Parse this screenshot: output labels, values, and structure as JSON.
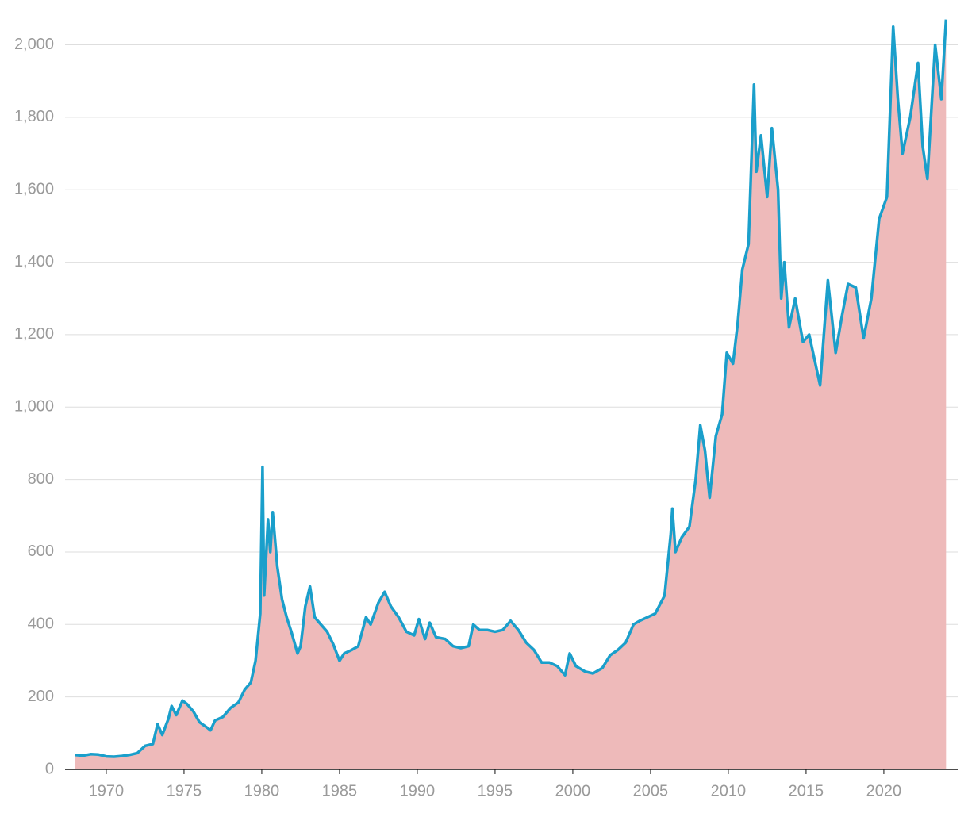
{
  "chart_data": {
    "type": "area",
    "x": [
      1968.0,
      1968.5,
      1969.0,
      1969.5,
      1970.0,
      1970.5,
      1971.0,
      1971.5,
      1972.0,
      1972.5,
      1973.0,
      1973.3,
      1973.6,
      1974.0,
      1974.2,
      1974.5,
      1974.9,
      1975.2,
      1975.6,
      1976.0,
      1976.5,
      1976.7,
      1977.0,
      1977.5,
      1978.0,
      1978.5,
      1978.9,
      1979.3,
      1979.6,
      1979.9,
      1980.05,
      1980.15,
      1980.4,
      1980.55,
      1980.7,
      1981.0,
      1981.3,
      1981.6,
      1981.9,
      1982.3,
      1982.5,
      1982.8,
      1983.1,
      1983.4,
      1983.8,
      1984.2,
      1984.6,
      1985.0,
      1985.3,
      1985.8,
      1986.2,
      1986.7,
      1987.0,
      1987.5,
      1987.9,
      1988.3,
      1988.8,
      1989.3,
      1989.8,
      1990.1,
      1990.5,
      1990.8,
      1991.2,
      1991.8,
      1992.3,
      1992.8,
      1993.3,
      1993.6,
      1994.0,
      1994.5,
      1995.0,
      1995.5,
      1996.0,
      1996.5,
      1997.0,
      1997.5,
      1998.0,
      1998.5,
      1999.0,
      1999.5,
      1999.8,
      2000.2,
      2000.8,
      2001.3,
      2001.9,
      2002.4,
      2002.9,
      2003.4,
      2003.9,
      2004.3,
      2004.8,
      2005.3,
      2005.9,
      2006.3,
      2006.4,
      2006.6,
      2007.0,
      2007.5,
      2007.9,
      2008.2,
      2008.5,
      2008.8,
      2009.2,
      2009.6,
      2009.9,
      2010.3,
      2010.6,
      2010.9,
      2011.3,
      2011.65,
      2011.8,
      2012.1,
      2012.5,
      2012.8,
      2013.2,
      2013.4,
      2013.6,
      2013.9,
      2014.3,
      2014.8,
      2015.2,
      2015.9,
      2016.4,
      2016.9,
      2017.3,
      2017.7,
      2018.2,
      2018.7,
      2019.2,
      2019.7,
      2020.2,
      2020.6,
      2020.9,
      2021.2,
      2021.7,
      2022.2,
      2022.5,
      2022.8,
      2023.3,
      2023.7,
      2024.0
    ],
    "values": [
      40,
      38,
      42,
      41,
      36,
      35,
      37,
      40,
      45,
      65,
      70,
      125,
      95,
      140,
      175,
      150,
      190,
      180,
      160,
      130,
      115,
      108,
      135,
      145,
      170,
      185,
      220,
      240,
      300,
      430,
      835,
      480,
      690,
      600,
      710,
      560,
      470,
      420,
      380,
      320,
      340,
      450,
      505,
      420,
      400,
      380,
      345,
      300,
      320,
      330,
      340,
      420,
      400,
      460,
      490,
      450,
      420,
      380,
      370,
      415,
      360,
      405,
      365,
      360,
      340,
      335,
      340,
      400,
      385,
      385,
      380,
      385,
      410,
      385,
      350,
      330,
      295,
      295,
      285,
      260,
      320,
      285,
      270,
      265,
      280,
      315,
      330,
      350,
      400,
      410,
      420,
      430,
      480,
      650,
      720,
      600,
      640,
      670,
      800,
      950,
      880,
      750,
      920,
      980,
      1150,
      1120,
      1230,
      1380,
      1450,
      1890,
      1650,
      1750,
      1580,
      1770,
      1600,
      1300,
      1400,
      1220,
      1300,
      1180,
      1200,
      1060,
      1350,
      1150,
      1250,
      1340,
      1330,
      1190,
      1300,
      1520,
      1580,
      2050,
      1850,
      1700,
      1800,
      1950,
      1720,
      1630,
      2000,
      1850,
      2070
    ],
    "line_color": "#1a9fcb",
    "fill_color": "#eebaba",
    "xlim": [
      1967.35,
      2024.8
    ],
    "xticks": [
      1970,
      1975,
      1980,
      1985,
      1990,
      1995,
      2000,
      2005,
      2010,
      2015,
      2020
    ],
    "ylim": [
      0,
      2080
    ],
    "yticks": [
      0,
      200,
      400,
      600,
      800,
      {
        "value": 1000,
        "label": "1,000"
      },
      {
        "value": 1200,
        "label": "1,200"
      },
      {
        "value": 1400,
        "label": "1,400"
      },
      {
        "value": 1600,
        "label": "1,600"
      },
      {
        "value": 1800,
        "label": "1,800"
      },
      {
        "value": 2000,
        "label": "2,000"
      }
    ],
    "grid": true
  }
}
